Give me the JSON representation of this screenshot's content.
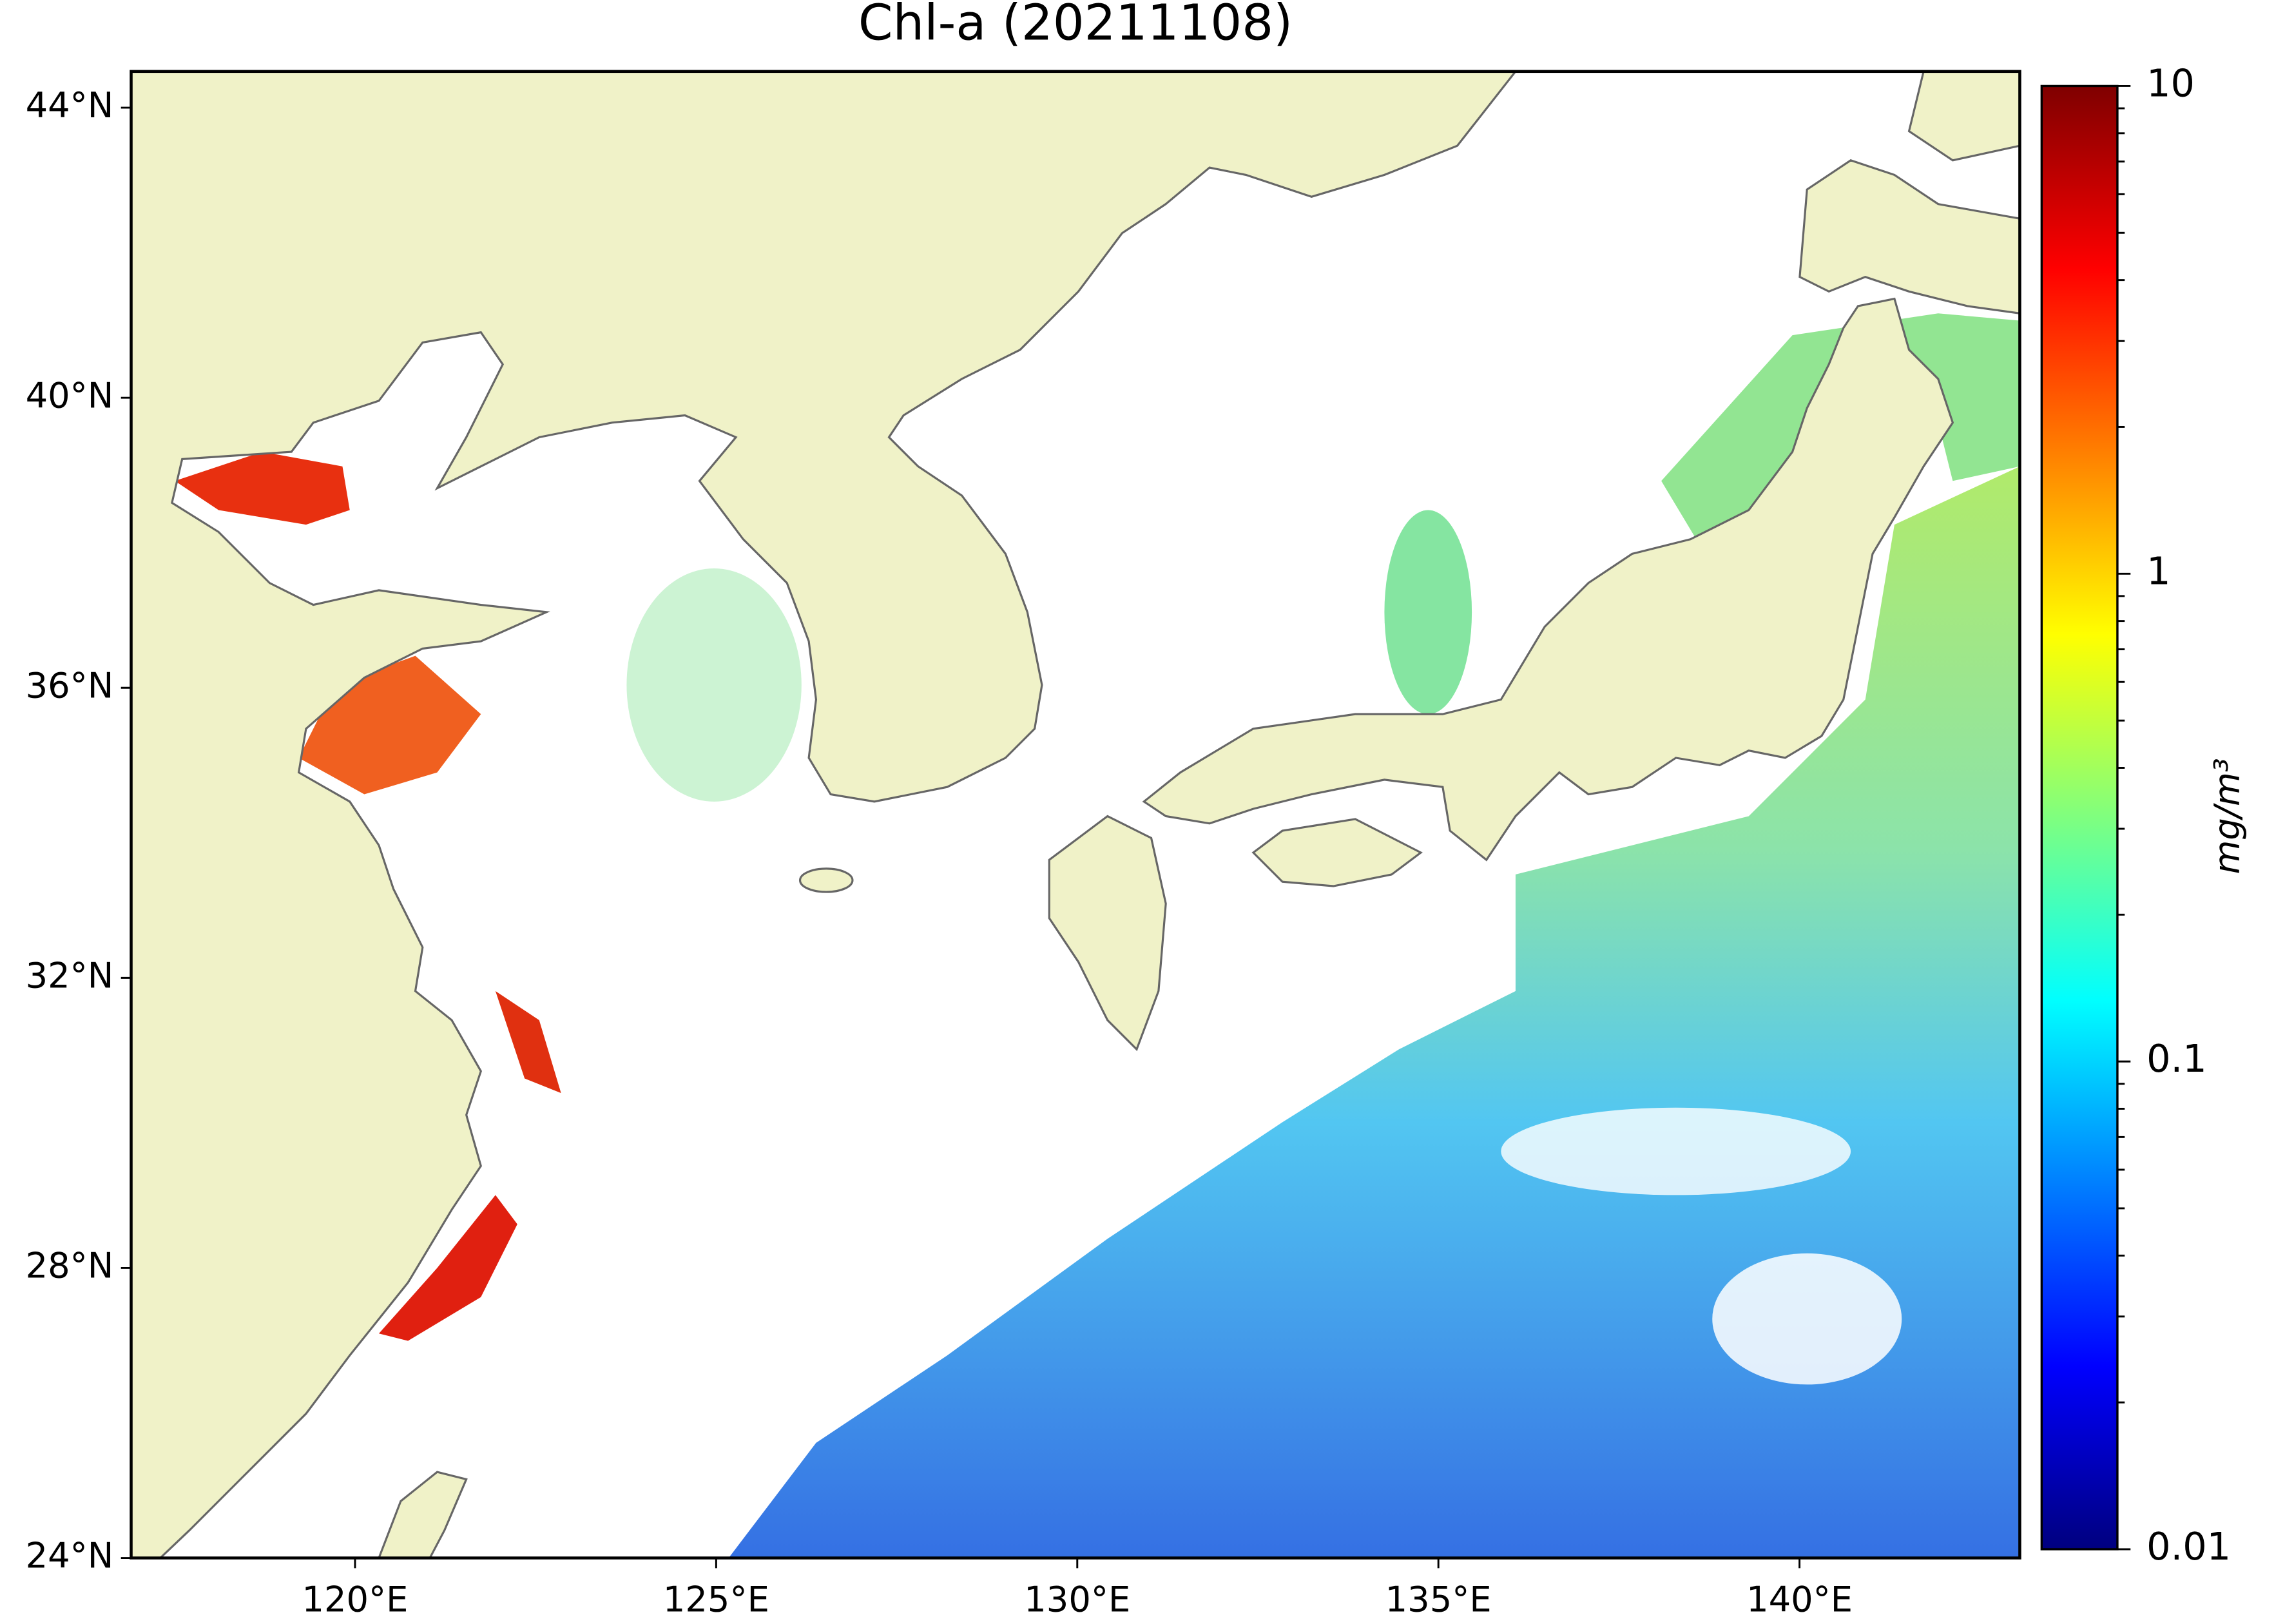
{
  "map": {
    "title": "Chl-a (20211108)",
    "xlim": [
      116.9,
      143.05
    ],
    "ylim": [
      24,
      44.5
    ],
    "xticks": [
      {
        "value": 120,
        "label": "120°E"
      },
      {
        "value": 125,
        "label": "125°E"
      },
      {
        "value": 130,
        "label": "130°E"
      },
      {
        "value": 135,
        "label": "135°E"
      },
      {
        "value": 140,
        "label": "140°E"
      }
    ],
    "yticks": [
      {
        "value": 24,
        "label": "24°N"
      },
      {
        "value": 28,
        "label": "28°N"
      },
      {
        "value": 32,
        "label": "32°N"
      },
      {
        "value": 36,
        "label": "36°N"
      },
      {
        "value": 40,
        "label": "40°N"
      },
      {
        "value": 44,
        "label": "44°N"
      }
    ],
    "colorbar": {
      "label": "mg/m³",
      "scale": "log",
      "lim": [
        0.01,
        10
      ],
      "ticks": [
        0.01,
        0.1,
        1,
        10
      ],
      "colors": [
        "#00007f",
        "#0000ff",
        "#007fff",
        "#00ffff",
        "#7fff7f",
        "#ffff00",
        "#ff7f00",
        "#ff0000",
        "#7f0000"
      ]
    }
  }
}
